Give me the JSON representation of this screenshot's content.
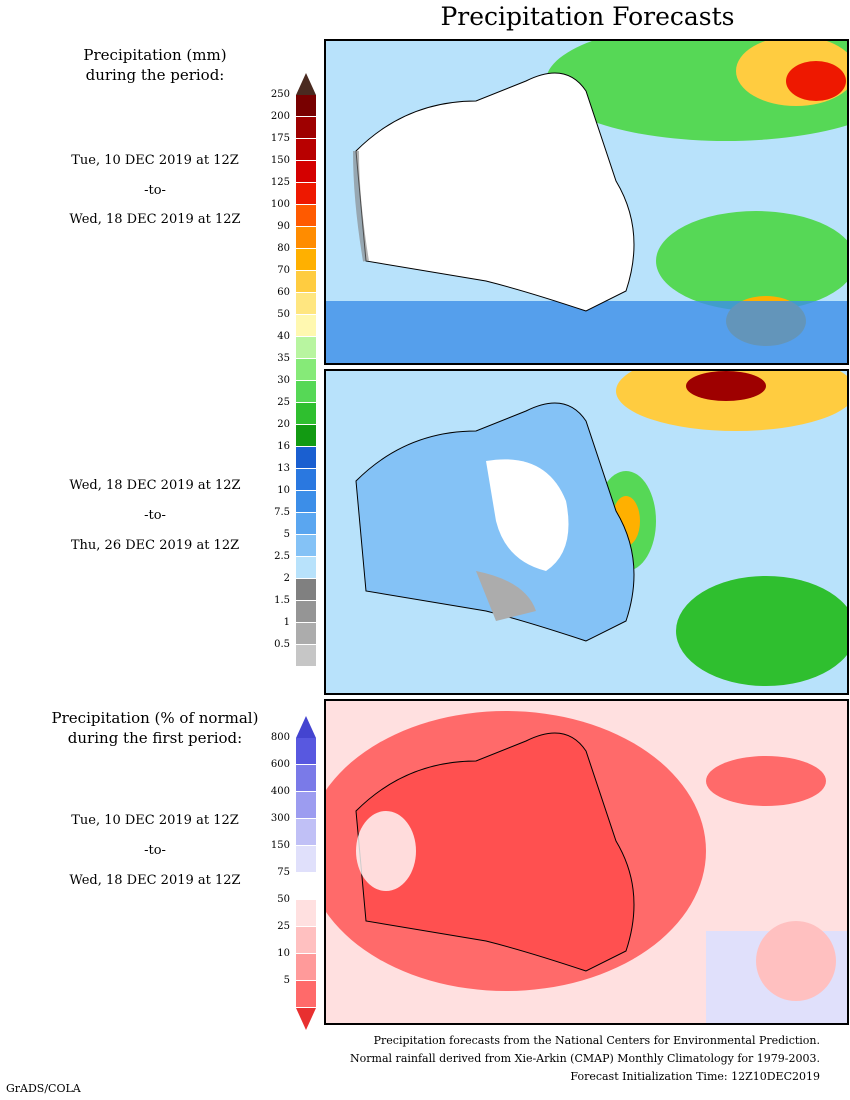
{
  "title": "Precipitation Forecasts",
  "left": {
    "heading_mm_line1": "Precipitation (mm)",
    "heading_mm_line2": "during the period:",
    "period1": {
      "start": "Tue, 10 DEC 2019 at 12Z",
      "sep": "-to-",
      "end": "Wed, 18 DEC 2019 at 12Z"
    },
    "period2": {
      "start": "Wed, 18 DEC 2019 at 12Z",
      "sep": "-to-",
      "end": "Thu, 26 DEC 2019 at 12Z"
    },
    "heading_pct_line1": "Precipitation (% of normal)",
    "heading_pct_line2": "during the first period:",
    "period3": {
      "start": "Tue, 10 DEC 2019 at 12Z",
      "sep": "-to-",
      "end": "Wed, 18 DEC 2019 at 12Z"
    }
  },
  "legend_mm": {
    "labels": [
      "250",
      "200",
      "175",
      "150",
      "125",
      "100",
      "90",
      "80",
      "70",
      "60",
      "50",
      "40",
      "35",
      "30",
      "25",
      "20",
      "16",
      "13",
      "10",
      "7.5",
      "5",
      "2.5",
      "2",
      "1.5",
      "1",
      "0.5"
    ],
    "colors": [
      "#780000",
      "#9e0000",
      "#b80000",
      "#d40000",
      "#ee1800",
      "#ff5a00",
      "#ff8c00",
      "#ffb000",
      "#ffcc40",
      "#ffe680",
      "#fff8b0",
      "#b8f5a0",
      "#86ea78",
      "#56d856",
      "#2fbf2f",
      "#129a12",
      "#1a5fd0",
      "#2a78e0",
      "#3c8ee8",
      "#5aa6f0",
      "#84c2f6",
      "#b8e2fb",
      "#808080",
      "#959595",
      "#acacac",
      "#c6c6c6"
    ],
    "under_color": "#ffffff",
    "over_color": "#4a2a20"
  },
  "legend_pct": {
    "labels": [
      "800",
      "600",
      "400",
      "300",
      "150",
      "75",
      "50",
      "25",
      "10",
      "5"
    ],
    "colors": [
      "#5858e0",
      "#7a7ae8",
      "#9c9cf0",
      "#c0c0f6",
      "#e0e0fb",
      "#ffffff",
      "#ffe0e0",
      "#ffc0c0",
      "#ff9a9a",
      "#ff6a6a"
    ],
    "over_color": "#4444d0",
    "under_color": "#e83030"
  },
  "footer": {
    "line1": "Precipitation forecasts from the National Centers for Environmental Prediction.",
    "line2": "Normal rainfall derived from Xie-Arkin (CMAP) Monthly Climatology for 1979-2003.",
    "line3": "Forecast Initialization Time: 12Z10DEC2019"
  },
  "credit": "GrADS/COLA"
}
